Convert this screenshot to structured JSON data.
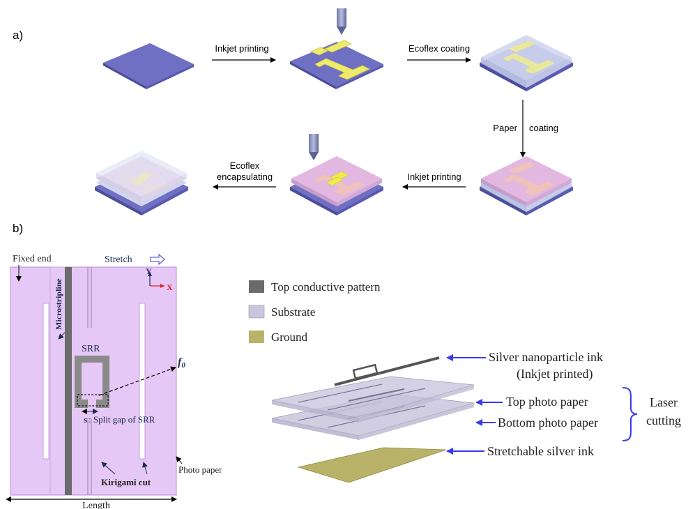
{
  "panel_a": {
    "label": "a)",
    "steps": {
      "inkjet_printing_1": "Inkjet printing",
      "ecoflex_coating": "Ecoflex coating",
      "paper_coating_left": "Paper",
      "paper_coating_right": "coating",
      "inkjet_printing_2": "Inkjet printing",
      "ecoflex_encapsulating_line1": "Ecoflex",
      "ecoflex_encapsulating_line2": "encapsulating"
    }
  },
  "panel_b": {
    "label": "b)",
    "schematic": {
      "fixed_end": "Fixed end",
      "stretch": "Stretch",
      "axis_y": "Y",
      "axis_x": "X",
      "microstripline": "Microstripline",
      "srr": "SRR",
      "f0": "f",
      "f0_sub": "0",
      "split_gap_s": "s",
      "split_gap_text": ": Split gap of SRR",
      "kirigami_cut": "Kirigami cut",
      "photo_paper": "Photo paper",
      "length": "Length"
    },
    "legend": [
      {
        "label": "Top conductive pattern",
        "color": "#6b6b6b"
      },
      {
        "label": "Substrate",
        "color": "#c9c6dd"
      },
      {
        "label": "Ground",
        "color": "#b9b36a"
      }
    ],
    "layers": {
      "silver_ink_line1": "Silver nanoparticle ink",
      "silver_ink_line2": "(Inkjet printed)",
      "top_photo_paper": "Top photo paper",
      "bottom_photo_paper": "Bottom photo paper",
      "stretchable_ink": "Stretchable silver ink",
      "laser_cutting_line1": "Laser",
      "laser_cutting_line2": "cutting"
    }
  },
  "colors": {
    "substrate_blue": "#6f6fc4",
    "ink_yellow": "#ece86a",
    "panel_b_purple": "#e5c8f5",
    "annotation_blue": "#3a3aee",
    "axis_red": "#e02020"
  }
}
